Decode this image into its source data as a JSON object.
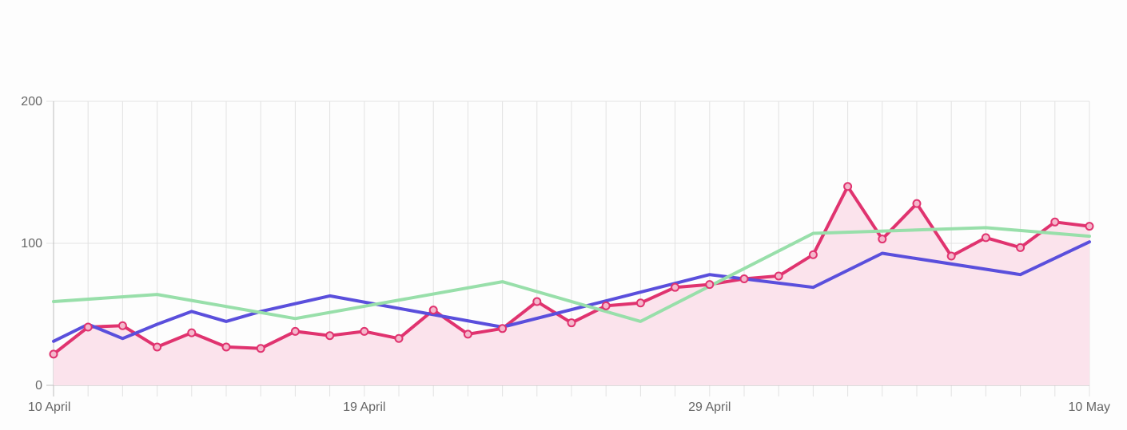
{
  "chart_data": {
    "type": "line",
    "x_ticks": [
      {
        "day": 0,
        "label": "10 April"
      },
      {
        "day": 9,
        "label": "19 April"
      },
      {
        "day": 19,
        "label": "29 April"
      },
      {
        "day": 30,
        "label": "10 May"
      }
    ],
    "y_ticks": [
      0,
      100,
      200
    ],
    "ylim": [
      0,
      200
    ],
    "xlim": [
      0,
      30
    ],
    "grid": true,
    "series": [
      {
        "color": "#e0336f",
        "fill": "#fbe3ec",
        "markers": true,
        "area": true,
        "points": [
          [
            0,
            22
          ],
          [
            1,
            41
          ],
          [
            2,
            42
          ],
          [
            3,
            27
          ],
          [
            4,
            37
          ],
          [
            5,
            27
          ],
          [
            6,
            26
          ],
          [
            7,
            38
          ],
          [
            8,
            35
          ],
          [
            9,
            38
          ],
          [
            10,
            33
          ],
          [
            11,
            53
          ],
          [
            12,
            36
          ],
          [
            13,
            40
          ],
          [
            14,
            59
          ],
          [
            15,
            44
          ],
          [
            16,
            56
          ],
          [
            17,
            58
          ],
          [
            18,
            69
          ],
          [
            19,
            71
          ],
          [
            20,
            75
          ],
          [
            21,
            77
          ],
          [
            22,
            92
          ],
          [
            23,
            140
          ],
          [
            24,
            103
          ],
          [
            25,
            128
          ],
          [
            26,
            91
          ],
          [
            27,
            104
          ],
          [
            28,
            97
          ],
          [
            29,
            115
          ],
          [
            30,
            112
          ]
        ]
      },
      {
        "color": "#5a4fdc",
        "markers": false,
        "area": false,
        "points": [
          [
            0,
            31
          ],
          [
            1,
            43
          ],
          [
            2,
            33
          ],
          [
            3,
            43
          ],
          [
            4,
            52
          ],
          [
            5,
            45
          ],
          [
            6,
            52
          ],
          [
            8,
            63
          ],
          [
            13,
            41
          ],
          [
            19,
            78
          ],
          [
            22,
            69
          ],
          [
            24,
            93
          ],
          [
            28,
            78
          ],
          [
            30,
            101
          ]
        ]
      },
      {
        "color": "#98dfaa",
        "markers": false,
        "area": false,
        "points": [
          [
            0,
            59
          ],
          [
            3,
            64
          ],
          [
            7,
            47
          ],
          [
            13,
            73
          ],
          [
            17,
            45
          ],
          [
            22,
            107
          ],
          [
            27,
            111
          ],
          [
            30,
            105
          ]
        ]
      }
    ]
  }
}
